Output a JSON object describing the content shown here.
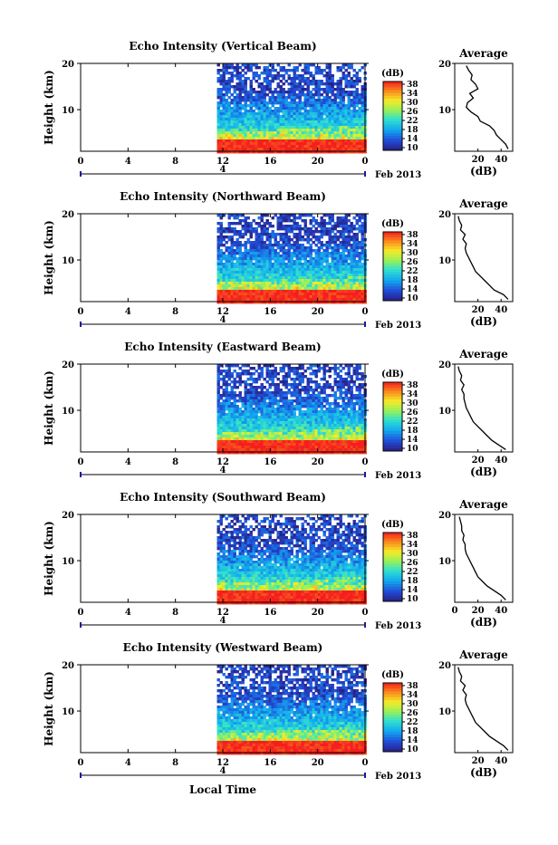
{
  "chart_data": [
    {
      "type": "heatmap",
      "title": "Echo Intensity (Vertical Beam)",
      "ylabel": "Height (km)",
      "x_ticks": [
        "0",
        "4",
        "8",
        "12",
        "16",
        "20",
        "0"
      ],
      "ylim": [
        1,
        20
      ],
      "y_ticks": [
        "20",
        "10"
      ],
      "data_start_hour": 11.5,
      "date_label": "Feb 2013",
      "date_marker": "4",
      "colorbar": {
        "label": "(dB)",
        "range": [
          10,
          38
        ],
        "ticks": [
          "38",
          "34",
          "30",
          "26",
          "22",
          "18",
          "14",
          "10"
        ]
      },
      "profile": {
        "title": "Average",
        "xlabel": "(dB)",
        "x_ticks": [
          "20",
          "40"
        ],
        "xlim": [
          0,
          50
        ],
        "y_ticks": [
          "20",
          "10"
        ],
        "height": [
          1.5,
          2.5,
          3.5,
          4.5,
          5.5,
          6.5,
          7.5,
          8.5,
          9.5,
          10.5,
          11.5,
          12.5,
          13.5,
          14.5,
          15.5,
          16.5,
          17.5,
          18.5,
          19.5
        ],
        "db": [
          46,
          44,
          40,
          36,
          34,
          30,
          22,
          20,
          14,
          10,
          11,
          16,
          13,
          20,
          18,
          14,
          15,
          12,
          10
        ]
      }
    },
    {
      "type": "heatmap",
      "title": "Echo Intensity (Northward Beam)",
      "ylabel": "Height (km)",
      "x_ticks": [
        "0",
        "4",
        "8",
        "12",
        "16",
        "20",
        "0"
      ],
      "ylim": [
        1,
        20
      ],
      "y_ticks": [
        "20",
        "10"
      ],
      "data_start_hour": 11.5,
      "date_label": "Feb 2013",
      "date_marker": "4",
      "colorbar": {
        "label": "(dB)",
        "range": [
          10,
          38
        ],
        "ticks": [
          "38",
          "34",
          "30",
          "26",
          "22",
          "18",
          "14",
          "10"
        ]
      },
      "profile": {
        "title": "Average",
        "xlabel": "(dB)",
        "x_ticks": [
          "20",
          "40"
        ],
        "xlim": [
          0,
          50
        ],
        "y_ticks": [
          "20",
          "10"
        ],
        "height": [
          1.5,
          2.5,
          3.5,
          4.5,
          5.5,
          6.5,
          7.5,
          8.5,
          9.5,
          10.5,
          11.5,
          12.5,
          13.5,
          14.5,
          15.5,
          16.5,
          17.5,
          18.5,
          19.5
        ],
        "db": [
          46,
          42,
          34,
          30,
          26,
          22,
          18,
          16,
          14,
          12,
          10,
          9,
          10,
          7,
          9,
          5,
          6,
          4,
          3
        ]
      }
    },
    {
      "type": "heatmap",
      "title": "Echo Intensity (Eastward Beam)",
      "ylabel": "Height (km)",
      "x_ticks": [
        "0",
        "4",
        "8",
        "12",
        "16",
        "20",
        "0"
      ],
      "ylim": [
        1,
        20
      ],
      "y_ticks": [
        "20",
        "10"
      ],
      "data_start_hour": 11.5,
      "date_label": "Feb 2013",
      "date_marker": "4",
      "colorbar": {
        "label": "(dB)",
        "range": [
          10,
          38
        ],
        "ticks": [
          "38",
          "34",
          "30",
          "26",
          "22",
          "18",
          "14",
          "10"
        ]
      },
      "profile": {
        "title": "Average",
        "xlabel": "(dB)",
        "x_ticks": [
          "20",
          "40"
        ],
        "xlim": [
          0,
          50
        ],
        "y_ticks": [
          "20",
          "10"
        ],
        "height": [
          1.5,
          2.5,
          3.5,
          4.5,
          5.5,
          6.5,
          7.5,
          8.5,
          9.5,
          10.5,
          11.5,
          12.5,
          13.5,
          14.5,
          15.5,
          16.5,
          17.5,
          18.5,
          19.5
        ],
        "db": [
          44,
          38,
          32,
          28,
          24,
          20,
          16,
          14,
          12,
          10,
          9,
          8,
          8,
          6,
          8,
          5,
          6,
          4,
          3
        ]
      }
    },
    {
      "type": "heatmap",
      "title": "Echo Intensity (Southward Beam)",
      "ylabel": "Height (km)",
      "x_ticks": [
        "0",
        "4",
        "8",
        "12",
        "16",
        "20",
        "0"
      ],
      "ylim": [
        1,
        20
      ],
      "y_ticks": [
        "20",
        "10"
      ],
      "data_start_hour": 11.5,
      "date_label": "Feb 2013",
      "date_marker": "4",
      "colorbar": {
        "label": "(dB)",
        "range": [
          10,
          38
        ],
        "ticks": [
          "38",
          "34",
          "30",
          "26",
          "22",
          "18",
          "14",
          "10"
        ]
      },
      "profile": {
        "title": "Average",
        "xlabel": "(dB)",
        "x_ticks": [
          "0",
          "20",
          "40"
        ],
        "xlim": [
          0,
          50
        ],
        "y_ticks": [
          "20",
          "10"
        ],
        "height": [
          1.5,
          2.5,
          3.5,
          4.5,
          5.5,
          6.5,
          7.5,
          8.5,
          9.5,
          10.5,
          11.5,
          12.5,
          13.5,
          14.5,
          15.5,
          16.5,
          17.5,
          18.5,
          19.5
        ],
        "db": [
          44,
          40,
          34,
          28,
          24,
          20,
          18,
          16,
          14,
          12,
          10,
          9,
          9,
          7,
          8,
          6,
          6,
          5,
          4
        ]
      }
    },
    {
      "type": "heatmap",
      "title": "Echo Intensity (Westward Beam)",
      "ylabel": "Height (km)",
      "xlabel": "Local Time",
      "x_ticks": [
        "0",
        "4",
        "8",
        "12",
        "16",
        "20",
        "0"
      ],
      "ylim": [
        1,
        20
      ],
      "y_ticks": [
        "20",
        "10"
      ],
      "data_start_hour": 11.5,
      "date_label": "Feb 2013",
      "date_marker": "4",
      "colorbar": {
        "label": "(dB)",
        "range": [
          10,
          38
        ],
        "ticks": [
          "38",
          "34",
          "30",
          "26",
          "22",
          "18",
          "14",
          "10"
        ]
      },
      "profile": {
        "title": "Average",
        "xlabel": "(dB)",
        "x_ticks": [
          "20",
          "40"
        ],
        "xlim": [
          0,
          50
        ],
        "y_ticks": [
          "20",
          "10"
        ],
        "height": [
          1.5,
          2.5,
          3.5,
          4.5,
          5.5,
          6.5,
          7.5,
          8.5,
          9.5,
          10.5,
          11.5,
          12.5,
          13.5,
          14.5,
          15.5,
          16.5,
          17.5,
          18.5,
          19.5
        ],
        "db": [
          46,
          42,
          36,
          30,
          26,
          22,
          18,
          16,
          14,
          12,
          10,
          9,
          10,
          7,
          9,
          5,
          6,
          4,
          3
        ]
      }
    }
  ]
}
